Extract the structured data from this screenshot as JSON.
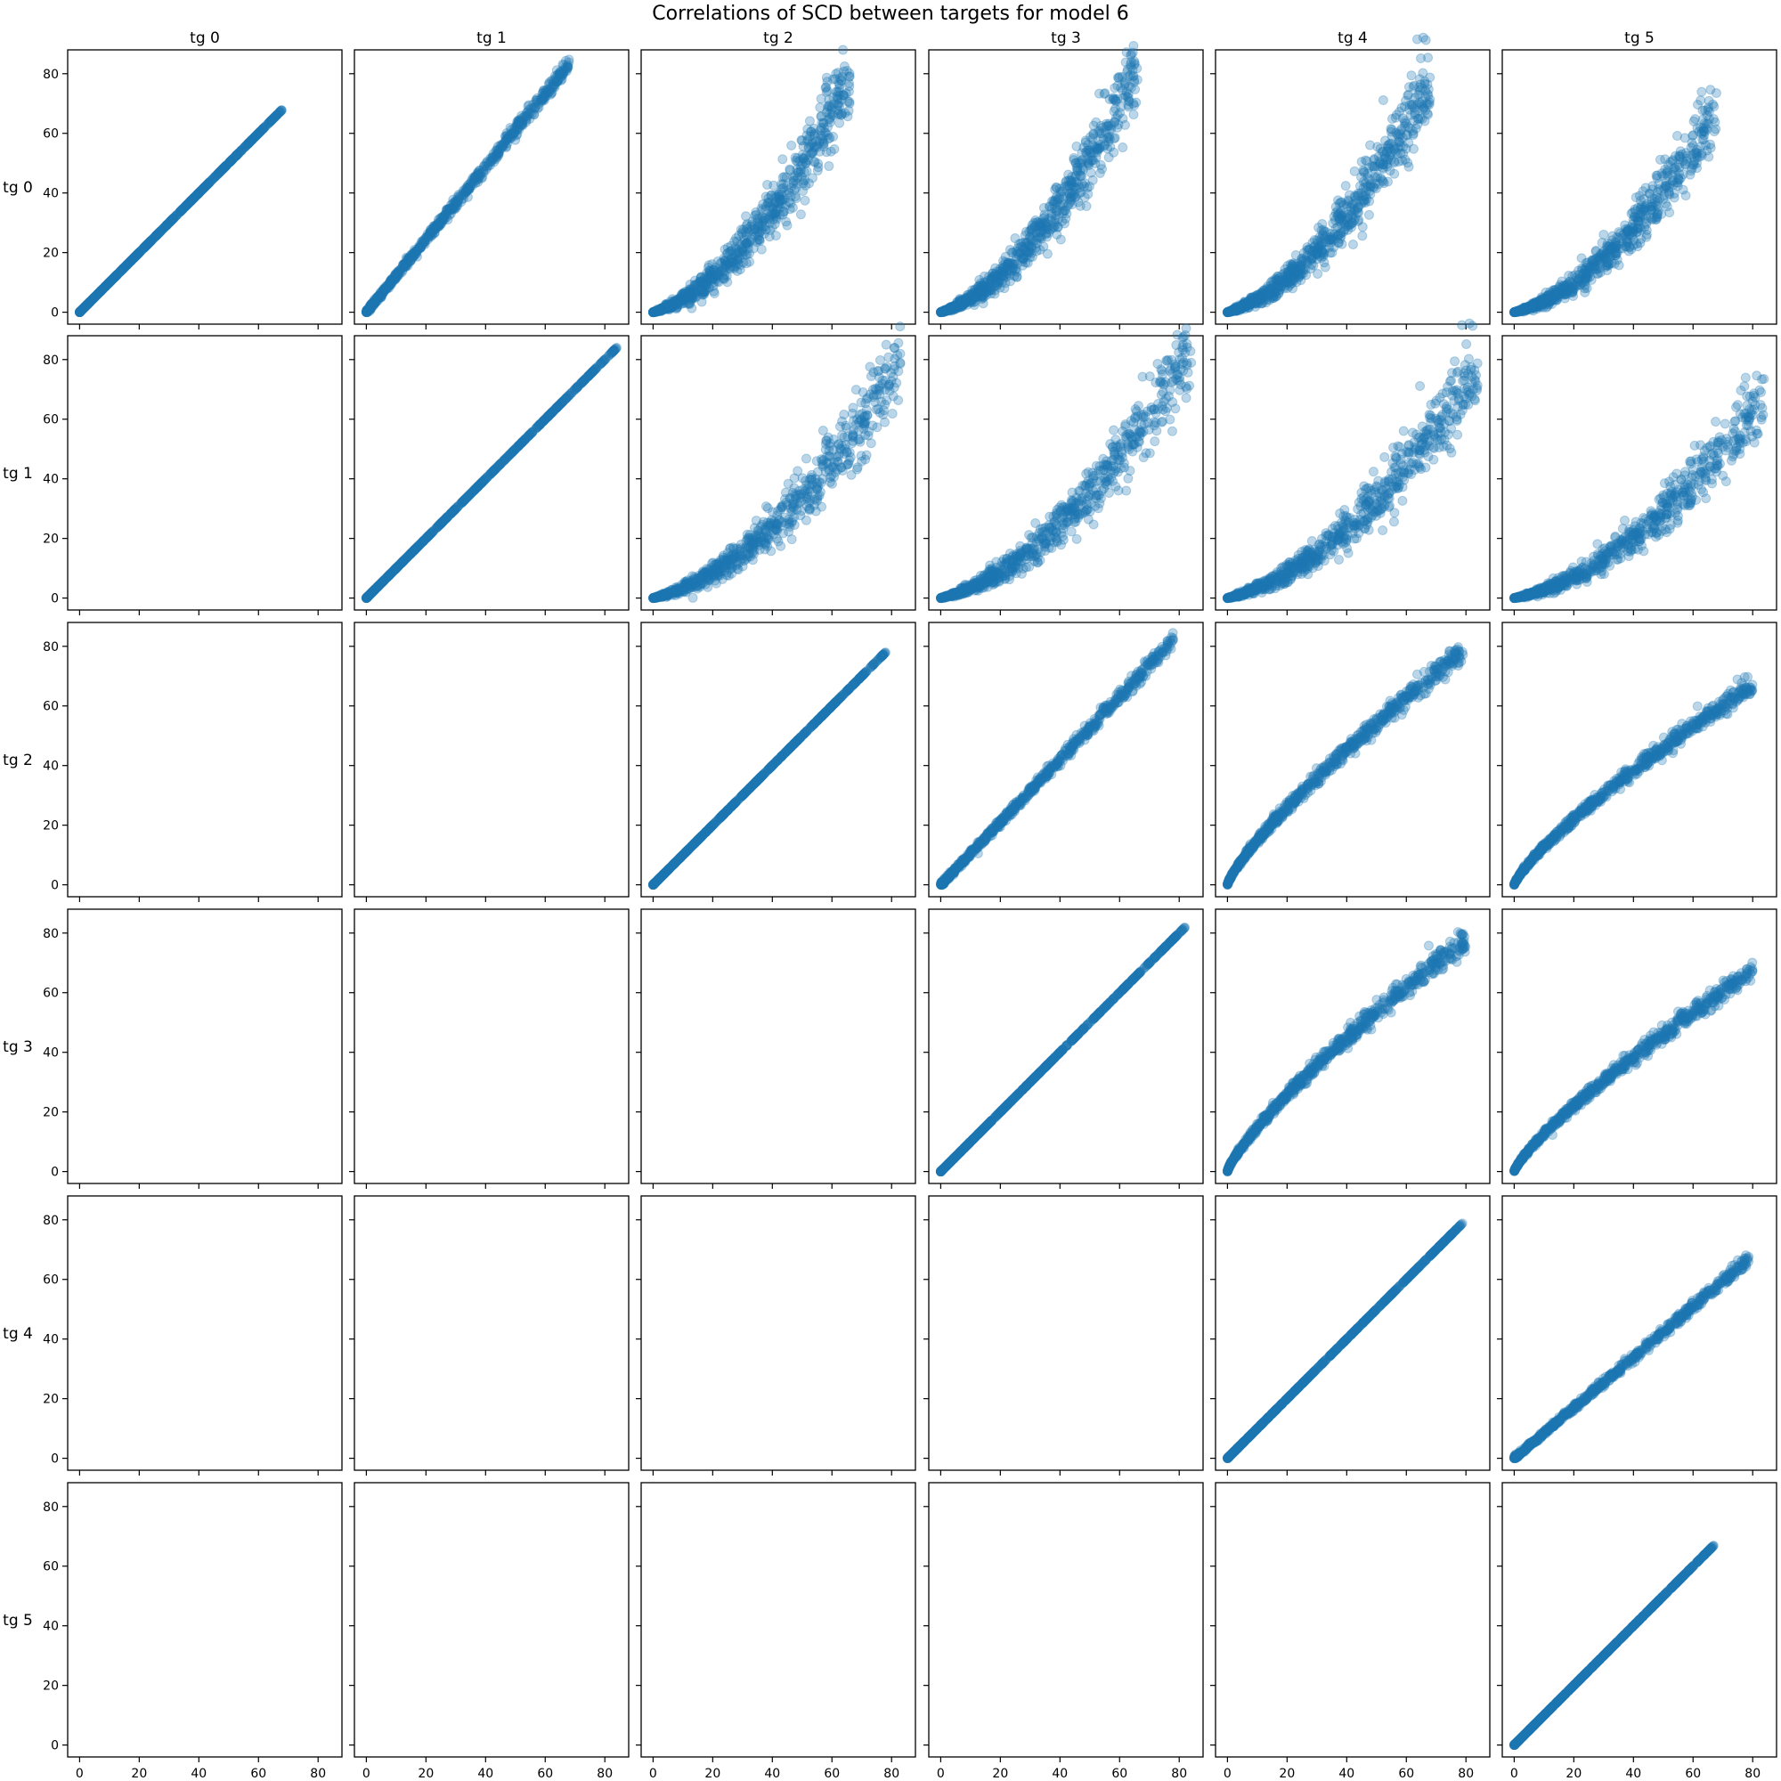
{
  "chart_data": {
    "type": "scatter",
    "title": "Correlations of SCD between targets for model 6",
    "layout": "upper-triangular scatter matrix, 6 rows x 6 columns, shared axes",
    "col_labels": [
      "tg 0",
      "tg 1",
      "tg 2",
      "tg 3",
      "tg 4",
      "tg 5"
    ],
    "row_labels": [
      "tg 0",
      "tg 1",
      "tg 2",
      "tg 3",
      "tg 4",
      "tg 5"
    ],
    "xlim": [
      -4,
      88
    ],
    "ylim": [
      -4,
      88
    ],
    "xticks": [
      0,
      20,
      40,
      60,
      80
    ],
    "yticks": [
      0,
      20,
      40,
      60,
      80
    ],
    "xticks_shown_on": "bottom row only",
    "yticks_shown_on": "left column only",
    "marker_color": "#1f77b4",
    "marker_alpha": 0.3,
    "grid": false,
    "legend": "none",
    "panels": [
      {
        "row": 0,
        "col": 0,
        "shape": "identity",
        "x_max": 68,
        "y_max": 68
      },
      {
        "row": 0,
        "col": 1,
        "shape": "near-linear",
        "x_max": 68,
        "y_max": 83
      },
      {
        "row": 0,
        "col": 2,
        "shape": "convex-spread",
        "x_max": 66,
        "y_max": 78
      },
      {
        "row": 0,
        "col": 3,
        "shape": "convex-spread",
        "x_max": 66,
        "y_max": 81
      },
      {
        "row": 0,
        "col": 4,
        "shape": "convex-spread",
        "x_max": 68,
        "y_max": 78
      },
      {
        "row": 0,
        "col": 5,
        "shape": "convex-spread",
        "x_max": 68,
        "y_max": 67
      },
      {
        "row": 1,
        "col": 1,
        "shape": "identity",
        "x_max": 84,
        "y_max": 84
      },
      {
        "row": 1,
        "col": 2,
        "shape": "convex-spread",
        "x_max": 83,
        "y_max": 78
      },
      {
        "row": 1,
        "col": 3,
        "shape": "convex-spread",
        "x_max": 84,
        "y_max": 82
      },
      {
        "row": 1,
        "col": 4,
        "shape": "convex-spread",
        "x_max": 84,
        "y_max": 78
      },
      {
        "row": 1,
        "col": 5,
        "shape": "convex-spread",
        "x_max": 84,
        "y_max": 67
      },
      {
        "row": 2,
        "col": 2,
        "shape": "identity",
        "x_max": 78,
        "y_max": 78
      },
      {
        "row": 2,
        "col": 3,
        "shape": "near-linear",
        "x_max": 78,
        "y_max": 82
      },
      {
        "row": 2,
        "col": 4,
        "shape": "concave-spread",
        "x_max": 79,
        "y_max": 78
      },
      {
        "row": 2,
        "col": 5,
        "shape": "concave-spread",
        "x_max": 80,
        "y_max": 67
      },
      {
        "row": 3,
        "col": 3,
        "shape": "identity",
        "x_max": 82,
        "y_max": 82
      },
      {
        "row": 3,
        "col": 4,
        "shape": "concave-spread",
        "x_max": 80,
        "y_max": 78
      },
      {
        "row": 3,
        "col": 5,
        "shape": "concave-spread",
        "x_max": 80,
        "y_max": 67
      },
      {
        "row": 4,
        "col": 4,
        "shape": "identity",
        "x_max": 79,
        "y_max": 79
      },
      {
        "row": 4,
        "col": 5,
        "shape": "near-linear",
        "x_max": 79,
        "y_max": 67
      },
      {
        "row": 5,
        "col": 5,
        "shape": "identity",
        "x_max": 67,
        "y_max": 67
      }
    ]
  }
}
